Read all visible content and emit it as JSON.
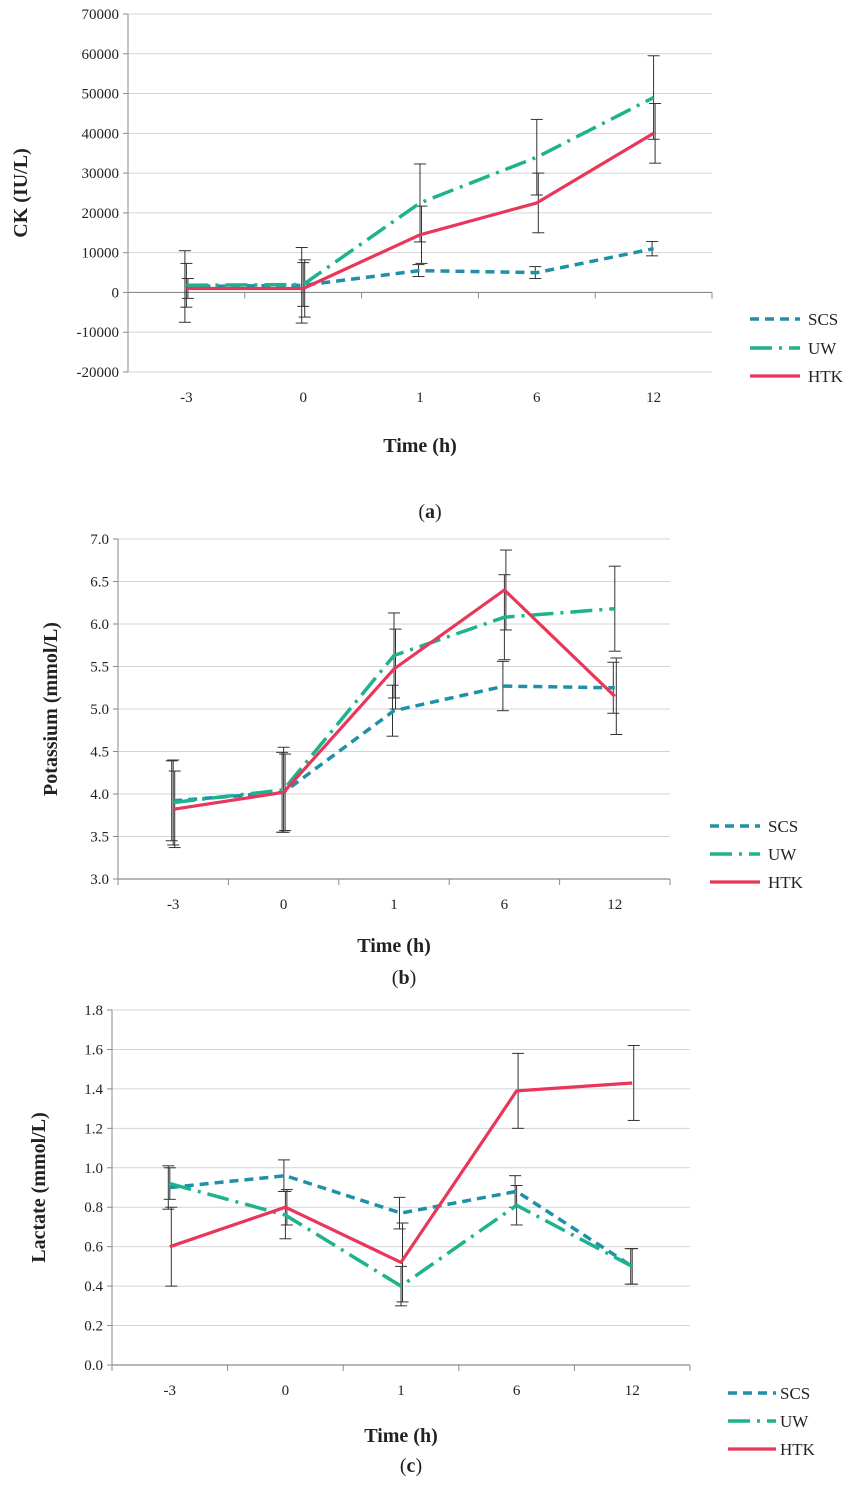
{
  "colors": {
    "SCS": "#1e90a8",
    "UW": "#1db38c",
    "HTK": "#e8375a",
    "grid": "#d4d4d4",
    "axis": "#8a8a8a",
    "errorbar": "#333333"
  },
  "chart_data": [
    {
      "id": "a",
      "type": "line",
      "caption_open": "(",
      "caption_letter": "a",
      "caption_close": ")",
      "ylabel": "CK (IU/L)",
      "xlabel": "Time (h)",
      "categories": [
        "-3",
        "0",
        "1",
        "6",
        "12"
      ],
      "ylim": [
        -20000,
        70000
      ],
      "yticks": [
        -20000,
        -10000,
        0,
        10000,
        20000,
        30000,
        40000,
        50000,
        60000,
        70000
      ],
      "ytick_labels": [
        "-20000",
        "-10000",
        "0",
        "10000",
        "20000",
        "30000",
        "40000",
        "50000",
        "60000",
        "70000"
      ],
      "grid": true,
      "legend_position": "right",
      "series": [
        {
          "name": "SCS",
          "values": [
            1500,
            1800,
            5500,
            5000,
            11000
          ],
          "err": [
            9000,
            9500,
            1500,
            1500,
            1800
          ]
        },
        {
          "name": "UW",
          "values": [
            1800,
            2000,
            22500,
            34000,
            49000
          ],
          "err": [
            5500,
            5500,
            9800,
            9500,
            10500
          ]
        },
        {
          "name": "HTK",
          "values": [
            1000,
            1000,
            14500,
            22500,
            40000
          ],
          "err": [
            2500,
            7200,
            7200,
            7500,
            7500
          ]
        }
      ]
    },
    {
      "id": "b",
      "type": "line",
      "caption_open": "(",
      "caption_letter": "b",
      "caption_close": ")",
      "ylabel": "Potassium (mmol/L)",
      "xlabel": "Time (h)",
      "categories": [
        "-3",
        "0",
        "1",
        "6",
        "12"
      ],
      "ylim": [
        3.0,
        7.0
      ],
      "yticks": [
        3.0,
        3.5,
        4.0,
        4.5,
        5.0,
        5.5,
        6.0,
        6.5,
        7.0
      ],
      "ytick_labels": [
        "3.0",
        "3.5",
        "4.0",
        "4.5",
        "5.0",
        "5.5",
        "6.0",
        "6.5",
        "7.0"
      ],
      "grid": true,
      "legend_position": "right",
      "series": [
        {
          "name": "SCS",
          "values": [
            3.92,
            4.02,
            4.98,
            5.27,
            5.25
          ],
          "err": [
            0.47,
            0.47,
            0.3,
            0.29,
            0.3
          ]
        },
        {
          "name": "UW",
          "values": [
            3.9,
            4.05,
            5.63,
            6.08,
            6.18
          ],
          "err": [
            0.5,
            0.5,
            0.5,
            0.5,
            0.5
          ]
        },
        {
          "name": "HTK",
          "values": [
            3.82,
            4.02,
            5.47,
            6.4,
            5.15
          ],
          "err": [
            0.45,
            0.45,
            0.47,
            0.47,
            0.45
          ]
        }
      ]
    },
    {
      "id": "c",
      "type": "line",
      "caption_open": "(",
      "caption_letter": "c",
      "caption_close": ")",
      "ylabel": "Lactate (mmol/L)",
      "xlabel": "Time (h)",
      "categories": [
        "-3",
        "0",
        "1",
        "6",
        "12"
      ],
      "ylim": [
        0.0,
        1.8
      ],
      "yticks": [
        0.0,
        0.2,
        0.4,
        0.6,
        0.8,
        1.0,
        1.2,
        1.4,
        1.6,
        1.8
      ],
      "ytick_labels": [
        "0.0",
        "0.2",
        "0.4",
        "0.6",
        "0.8",
        "1.0",
        "1.2",
        "1.4",
        "1.6",
        "1.8"
      ],
      "grid": true,
      "legend_position": "right",
      "series": [
        {
          "name": "SCS",
          "values": [
            0.9,
            0.96,
            0.77,
            0.88,
            0.5
          ],
          "err": [
            0.11,
            0.08,
            0.08,
            0.08,
            0.09
          ]
        },
        {
          "name": "UW",
          "values": [
            0.92,
            0.76,
            0.4,
            0.81,
            0.5
          ],
          "err": [
            0.08,
            0.12,
            0.1,
            0.1,
            0.09
          ]
        },
        {
          "name": "HTK",
          "values": [
            0.6,
            0.8,
            0.52,
            1.39,
            1.43
          ],
          "err": [
            0.2,
            0.09,
            0.2,
            0.19,
            0.19
          ]
        }
      ]
    }
  ]
}
